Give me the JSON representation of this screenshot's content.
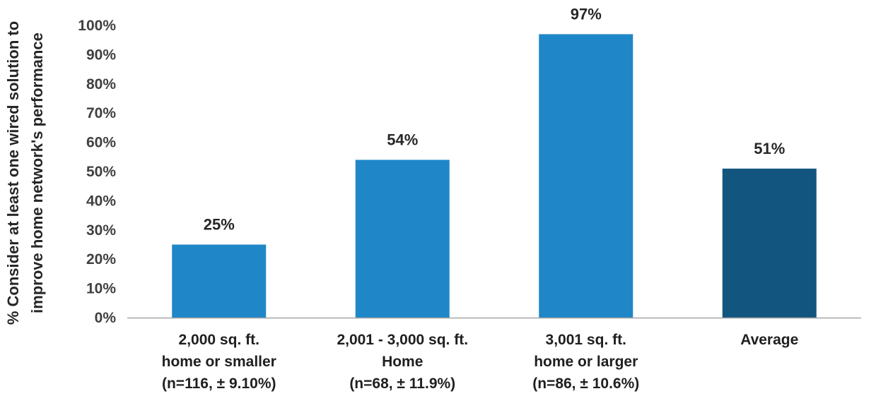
{
  "chart_data": {
    "type": "bar",
    "title": "",
    "ylabel_lines": [
      "% Consider at least one wired solution to",
      "improve home network's performance"
    ],
    "xlabel": "",
    "ylim": [
      0,
      100
    ],
    "yticks": [
      0,
      10,
      20,
      30,
      40,
      50,
      60,
      70,
      80,
      90,
      100
    ],
    "ytick_suffix": "%",
    "grid": false,
    "categories": [
      [
        "2,000 sq. ft.",
        "home or smaller",
        "(n=116, ± 9.10%)"
      ],
      [
        "2,001 - 3,000 sq. ft.",
        "Home",
        "(n=68, ± 11.9%)"
      ],
      [
        "3,001 sq. ft.",
        "home or larger",
        "(n=86, ± 10.6%)"
      ],
      [
        "Average"
      ]
    ],
    "values": [
      25,
      54,
      97,
      51
    ],
    "value_labels": [
      "25%",
      "54%",
      "97%",
      "51%"
    ],
    "colors": [
      "#1f87c8",
      "#1f87c8",
      "#1f87c8",
      "#125680"
    ],
    "axis_color": "#a6a6a6"
  }
}
